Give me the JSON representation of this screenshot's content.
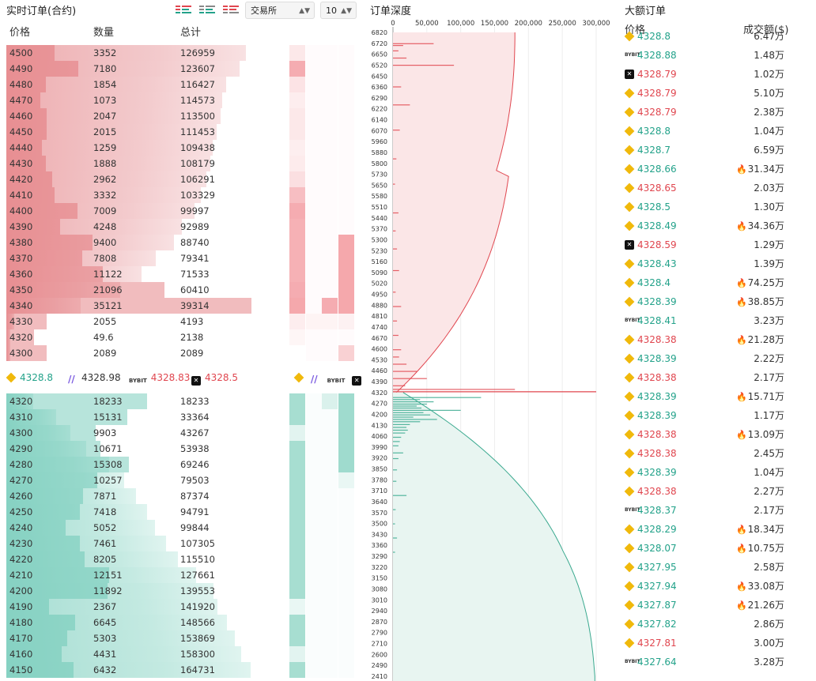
{
  "order_book": {
    "title": "实时订单(合约)",
    "columns": {
      "price": "价格",
      "qty": "数量",
      "total": "总计"
    },
    "exchange_select": "交易所",
    "depth_select": "10",
    "asks": [
      {
        "price": "4500",
        "qty": "3352",
        "total": "126959"
      },
      {
        "price": "4490",
        "qty": "7180",
        "total": "123607"
      },
      {
        "price": "4480",
        "qty": "1854",
        "total": "116427"
      },
      {
        "price": "4470",
        "qty": "1073",
        "total": "114573"
      },
      {
        "price": "4460",
        "qty": "2047",
        "total": "113500"
      },
      {
        "price": "4450",
        "qty": "2015",
        "total": "111453"
      },
      {
        "price": "4440",
        "qty": "1259",
        "total": "109438"
      },
      {
        "price": "4430",
        "qty": "1888",
        "total": "108179"
      },
      {
        "price": "4420",
        "qty": "2962",
        "total": "106291"
      },
      {
        "price": "4410",
        "qty": "3332",
        "total": "103329"
      },
      {
        "price": "4400",
        "qty": "7009",
        "total": "99997"
      },
      {
        "price": "4390",
        "qty": "4248",
        "total": "92989"
      },
      {
        "price": "4380",
        "qty": "9400",
        "total": "88740"
      },
      {
        "price": "4370",
        "qty": "7808",
        "total": "79341"
      },
      {
        "price": "4360",
        "qty": "11122",
        "total": "71533"
      },
      {
        "price": "4350",
        "qty": "21096",
        "total": "60410"
      },
      {
        "price": "4340",
        "qty": "35121",
        "total": "39314"
      },
      {
        "price": "4330",
        "qty": "2055",
        "total": "4193"
      },
      {
        "price": "4320",
        "qty": "49.6",
        "total": "2138"
      },
      {
        "price": "4300",
        "qty": "2089",
        "total": "2089"
      }
    ],
    "ticker": [
      {
        "exchange": "binance",
        "price": "4328.8",
        "color": "#23a28a"
      },
      {
        "exchange": "huobi",
        "price": "4328.98",
        "color": "#333333"
      },
      {
        "exchange": "bybit",
        "price": "4328.83",
        "color": "#e0464f"
      },
      {
        "exchange": "okx",
        "price": "4328.5",
        "color": "#e0464f"
      }
    ],
    "bids": [
      {
        "price": "4320",
        "qty": "18233",
        "total": "18233"
      },
      {
        "price": "4310",
        "qty": "15131",
        "total": "33364"
      },
      {
        "price": "4300",
        "qty": "9903",
        "total": "43267"
      },
      {
        "price": "4290",
        "qty": "10671",
        "total": "53938"
      },
      {
        "price": "4280",
        "qty": "15308",
        "total": "69246"
      },
      {
        "price": "4270",
        "qty": "10257",
        "total": "79503"
      },
      {
        "price": "4260",
        "qty": "7871",
        "total": "87374"
      },
      {
        "price": "4250",
        "qty": "7418",
        "total": "94791"
      },
      {
        "price": "4240",
        "qty": "5052",
        "total": "99844"
      },
      {
        "price": "4230",
        "qty": "7461",
        "total": "107305"
      },
      {
        "price": "4220",
        "qty": "8205",
        "total": "115510"
      },
      {
        "price": "4210",
        "qty": "12151",
        "total": "127661"
      },
      {
        "price": "4200",
        "qty": "11892",
        "total": "139553"
      },
      {
        "price": "4190",
        "qty": "2367",
        "total": "141920"
      },
      {
        "price": "4180",
        "qty": "6645",
        "total": "148566"
      },
      {
        "price": "4170",
        "qty": "5303",
        "total": "153869"
      },
      {
        "price": "4160",
        "qty": "4431",
        "total": "158300"
      },
      {
        "price": "4150",
        "qty": "6432",
        "total": "164731"
      }
    ]
  },
  "depth": {
    "title": "订单深度",
    "mid_label": "4320",
    "x_ticks": [
      "0",
      "50,000",
      "100,000",
      "150,000",
      "200,000",
      "250,000",
      "300,000"
    ],
    "y_ticks": [
      "6820",
      "6720",
      "6650",
      "6520",
      "6450",
      "6360",
      "6290",
      "6220",
      "6140",
      "6070",
      "5960",
      "5880",
      "5800",
      "5730",
      "5650",
      "5580",
      "5510",
      "5440",
      "5370",
      "5300",
      "5230",
      "5160",
      "5090",
      "5020",
      "4950",
      "4880",
      "4810",
      "4740",
      "4670",
      "4600",
      "4530",
      "4460",
      "4390",
      "4320",
      "4270",
      "4200",
      "4130",
      "4060",
      "3990",
      "3920",
      "3850",
      "3780",
      "3710",
      "3640",
      "3570",
      "3500",
      "3430",
      "3360",
      "3290",
      "3220",
      "3150",
      "3080",
      "3010",
      "2940",
      "2870",
      "2790",
      "2710",
      "2600",
      "2490",
      "2410"
    ]
  },
  "big_orders": {
    "title": "大额订单",
    "col_price": "价格",
    "col_amount": "成交额($)",
    "rows": [
      {
        "ex": "binance",
        "price": "4328.8",
        "dir": "up",
        "amount": "6.47万",
        "fire": false
      },
      {
        "ex": "bybit",
        "price": "4328.88",
        "dir": "up",
        "amount": "1.48万",
        "fire": false
      },
      {
        "ex": "okx",
        "price": "4328.79",
        "dir": "down",
        "amount": "1.02万",
        "fire": false
      },
      {
        "ex": "binance",
        "price": "4328.79",
        "dir": "down",
        "amount": "5.10万",
        "fire": false
      },
      {
        "ex": "binance",
        "price": "4328.79",
        "dir": "down",
        "amount": "2.38万",
        "fire": false
      },
      {
        "ex": "binance",
        "price": "4328.8",
        "dir": "up",
        "amount": "1.04万",
        "fire": false
      },
      {
        "ex": "binance",
        "price": "4328.7",
        "dir": "up",
        "amount": "6.59万",
        "fire": false
      },
      {
        "ex": "binance",
        "price": "4328.66",
        "dir": "up",
        "amount": "31.34万",
        "fire": true
      },
      {
        "ex": "binance",
        "price": "4328.65",
        "dir": "down",
        "amount": "2.03万",
        "fire": false
      },
      {
        "ex": "binance",
        "price": "4328.5",
        "dir": "up",
        "amount": "1.30万",
        "fire": false
      },
      {
        "ex": "binance",
        "price": "4328.49",
        "dir": "up",
        "amount": "34.36万",
        "fire": true
      },
      {
        "ex": "okx",
        "price": "4328.59",
        "dir": "down",
        "amount": "1.29万",
        "fire": false
      },
      {
        "ex": "binance",
        "price": "4328.43",
        "dir": "up",
        "amount": "1.39万",
        "fire": false
      },
      {
        "ex": "binance",
        "price": "4328.4",
        "dir": "up",
        "amount": "74.25万",
        "fire": true
      },
      {
        "ex": "binance",
        "price": "4328.39",
        "dir": "up",
        "amount": "38.85万",
        "fire": true
      },
      {
        "ex": "bybit",
        "price": "4328.41",
        "dir": "up",
        "amount": "3.23万",
        "fire": false
      },
      {
        "ex": "binance",
        "price": "4328.38",
        "dir": "down",
        "amount": "21.28万",
        "fire": true
      },
      {
        "ex": "binance",
        "price": "4328.39",
        "dir": "up",
        "amount": "2.22万",
        "fire": false
      },
      {
        "ex": "binance",
        "price": "4328.38",
        "dir": "down",
        "amount": "2.17万",
        "fire": false
      },
      {
        "ex": "binance",
        "price": "4328.39",
        "dir": "up",
        "amount": "15.71万",
        "fire": true
      },
      {
        "ex": "binance",
        "price": "4328.39",
        "dir": "up",
        "amount": "1.17万",
        "fire": false
      },
      {
        "ex": "binance",
        "price": "4328.38",
        "dir": "down",
        "amount": "13.09万",
        "fire": true
      },
      {
        "ex": "binance",
        "price": "4328.38",
        "dir": "down",
        "amount": "2.45万",
        "fire": false
      },
      {
        "ex": "binance",
        "price": "4328.39",
        "dir": "up",
        "amount": "1.04万",
        "fire": false
      },
      {
        "ex": "binance",
        "price": "4328.38",
        "dir": "down",
        "amount": "2.27万",
        "fire": false
      },
      {
        "ex": "bybit",
        "price": "4328.37",
        "dir": "up",
        "amount": "2.17万",
        "fire": false
      },
      {
        "ex": "binance",
        "price": "4328.29",
        "dir": "up",
        "amount": "18.34万",
        "fire": true
      },
      {
        "ex": "binance",
        "price": "4328.07",
        "dir": "up",
        "amount": "10.75万",
        "fire": true
      },
      {
        "ex": "binance",
        "price": "4327.95",
        "dir": "up",
        "amount": "2.58万",
        "fire": false
      },
      {
        "ex": "binance",
        "price": "4327.94",
        "dir": "up",
        "amount": "33.08万",
        "fire": true
      },
      {
        "ex": "binance",
        "price": "4327.87",
        "dir": "up",
        "amount": "21.26万",
        "fire": true
      },
      {
        "ex": "binance",
        "price": "4327.82",
        "dir": "up",
        "amount": "2.86万",
        "fire": false
      },
      {
        "ex": "binance",
        "price": "4327.81",
        "dir": "down",
        "amount": "3.00万",
        "fire": false
      },
      {
        "ex": "bybit",
        "price": "4327.64",
        "dir": "up",
        "amount": "3.28万",
        "fire": false
      }
    ]
  },
  "colors": {
    "ask": "#df6a6f",
    "bid": "#5fc3af",
    "up": "#23a28a",
    "down": "#e0464f"
  }
}
